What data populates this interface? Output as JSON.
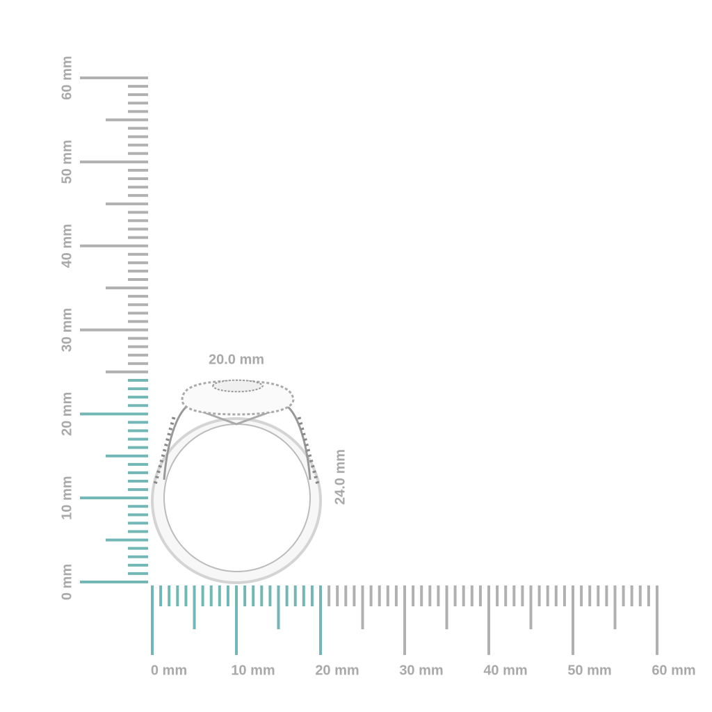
{
  "rulers": {
    "vertical": {
      "labels": [
        {
          "value": 0,
          "label": "0 mm"
        },
        {
          "value": 10,
          "label": "10 mm"
        },
        {
          "value": 20,
          "label": "20 mm"
        },
        {
          "value": 30,
          "label": "30 mm"
        },
        {
          "value": 40,
          "label": "40 mm"
        },
        {
          "value": 50,
          "label": "50 mm"
        },
        {
          "value": 60,
          "label": "60 mm"
        }
      ]
    },
    "horizontal": {
      "labels": [
        {
          "value": 0,
          "label": "0 mm"
        },
        {
          "value": 10,
          "label": "10 mm"
        },
        {
          "value": 20,
          "label": "20 mm"
        },
        {
          "value": 30,
          "label": "30 mm"
        },
        {
          "value": 40,
          "label": "40 mm"
        },
        {
          "value": 50,
          "label": "50 mm"
        },
        {
          "value": 60,
          "label": "60 mm"
        }
      ]
    }
  },
  "dimensions": {
    "width": {
      "value": 20,
      "label": "20.0 mm"
    },
    "height": {
      "value": 24,
      "label": "24.0 mm"
    }
  }
}
